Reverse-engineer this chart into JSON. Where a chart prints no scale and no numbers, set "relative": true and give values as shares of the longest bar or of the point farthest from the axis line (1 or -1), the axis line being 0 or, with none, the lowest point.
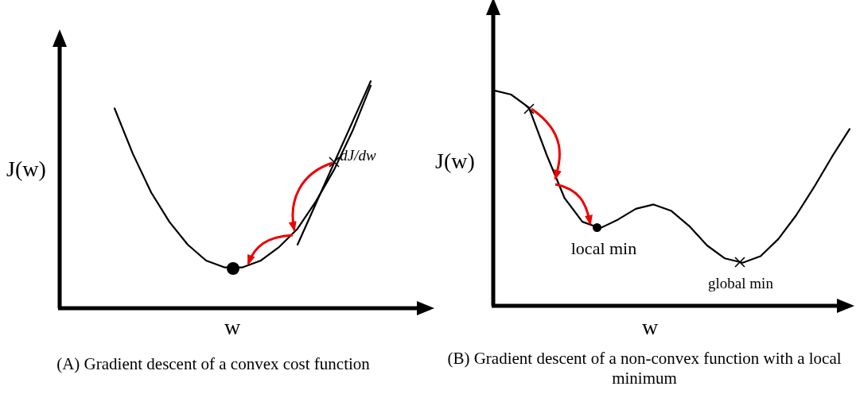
{
  "chart_data": [
    {
      "type": "line",
      "relative": true,
      "xlabel": "w",
      "ylabel": "J(w)",
      "categories": [
        null,
        null,
        null,
        null,
        null,
        null,
        null,
        null,
        null,
        null,
        null,
        null,
        null,
        null,
        null
      ],
      "annotations": [
        "dJ/dw",
        "(A) Gradient descent of a convex cost function"
      ],
      "series": [
        {
          "color": "#000000",
          "values": [
            0.88,
            0.68,
            0.51,
            0.38,
            0.28,
            0.21,
            0.18,
            0.18,
            0.21,
            0.27,
            0.35,
            0.47,
            0.61,
            0.78,
            0.98
          ]
        },
        {
          "color": "#000000",
          "values": [
            null,
            null,
            null,
            null,
            null,
            null,
            null,
            null,
            null,
            null,
            0.28,
            0.46,
            0.64,
            0.82,
            1
          ]
        }
      ]
    },
    {
      "type": "line",
      "relative": true,
      "xlabel": "w",
      "ylabel": "J(w)",
      "categories": [
        null,
        null,
        null,
        null,
        null,
        null,
        null,
        null,
        null,
        null,
        null,
        null,
        null,
        null,
        null,
        null,
        null,
        null,
        null,
        null,
        null
      ],
      "annotations": [
        "local min",
        "global min",
        "(B) Gradient descent of a non-convex function with a local minimum"
      ],
      "series": [
        {
          "color": "#000000",
          "values": [
            1,
            0.98,
            0.92,
            0.7,
            0.5,
            0.39,
            0.36,
            0.4,
            0.45,
            0.47,
            0.44,
            0.37,
            0.28,
            0.22,
            0.2,
            0.23,
            0.31,
            0.42,
            0.55,
            0.69,
            0.82
          ]
        }
      ]
    }
  ]
}
